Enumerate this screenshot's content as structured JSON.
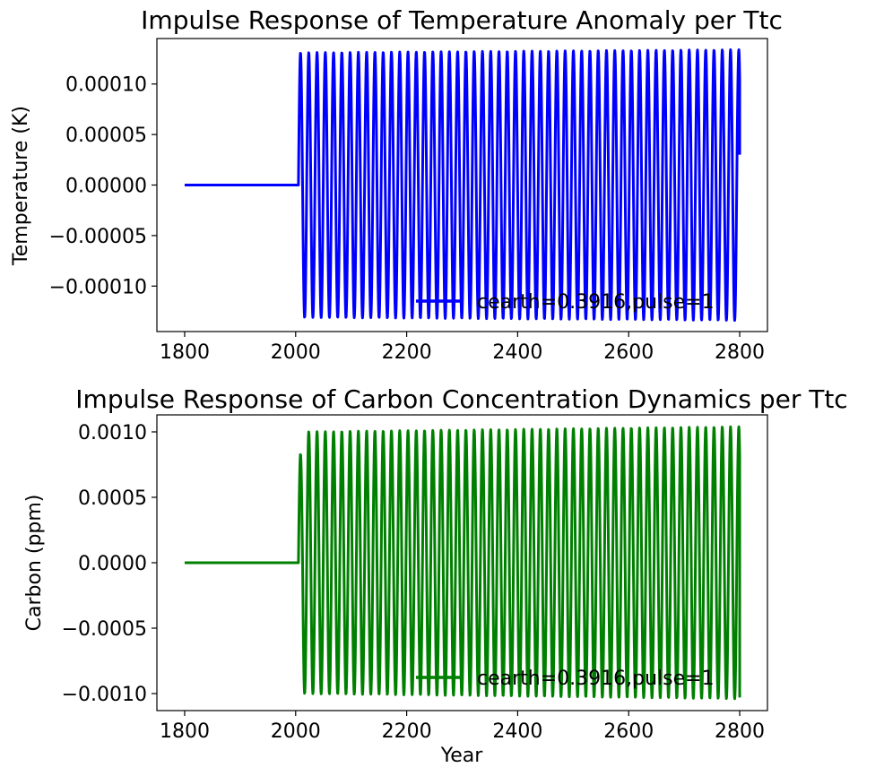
{
  "chart_data": [
    {
      "type": "line",
      "title": "Impulse Response of Temperature Anomaly per Ttc",
      "xlabel": "",
      "ylabel": "Temperature (K)",
      "xlim": [
        1750,
        2850
      ],
      "ylim": [
        -0.000145,
        0.000145
      ],
      "xticks": [
        1800,
        2000,
        2200,
        2400,
        2600,
        2800
      ],
      "xtick_labels": [
        "1800",
        "2000",
        "2200",
        "2400",
        "2600",
        "2800"
      ],
      "yticks": [
        0.0001,
        5e-05,
        0.0,
        -5e-05,
        -0.0001
      ],
      "ytick_labels": [
        "0.00010",
        "0.00005",
        "0.00000",
        "−0.00005",
        "−0.00010"
      ],
      "legend_position": "lower-right",
      "series": [
        {
          "name": "cearth=0.3916,pulse=1",
          "color": "#0000ff",
          "flat_until": 2005,
          "flat_value": 0,
          "oscillation": {
            "start": 2005,
            "end": 2800,
            "period": 14.9,
            "amplitude_start": 0.000131,
            "amplitude_end": 0.000134,
            "end_value": 3e-05
          }
        }
      ]
    },
    {
      "type": "line",
      "title": "Impulse Response of Carbon Concentration Dynamics per Ttc",
      "xlabel": "Year",
      "ylabel": "Carbon (ppm)",
      "xlim": [
        1750,
        2850
      ],
      "ylim": [
        -0.00113,
        0.00113
      ],
      "xticks": [
        1800,
        2000,
        2200,
        2400,
        2600,
        2800
      ],
      "xtick_labels": [
        "1800",
        "2000",
        "2200",
        "2400",
        "2600",
        "2800"
      ],
      "yticks": [
        0.001,
        0.0005,
        0.0,
        -0.0005,
        -0.001
      ],
      "ytick_labels": [
        "0.0010",
        "0.0005",
        "0.0000",
        "−0.0005",
        "−0.0010"
      ],
      "legend_position": "lower-right",
      "series": [
        {
          "name": "cearth=0.3916,pulse=1",
          "color": "#008000",
          "flat_until": 2005,
          "flat_value": 0,
          "oscillation": {
            "start": 2005,
            "end": 2800,
            "period": 14.9,
            "amplitude_start": 0.001,
            "amplitude_end": 0.00104,
            "first_peak": 0.00083,
            "end_value": -0.00103
          }
        }
      ]
    }
  ]
}
